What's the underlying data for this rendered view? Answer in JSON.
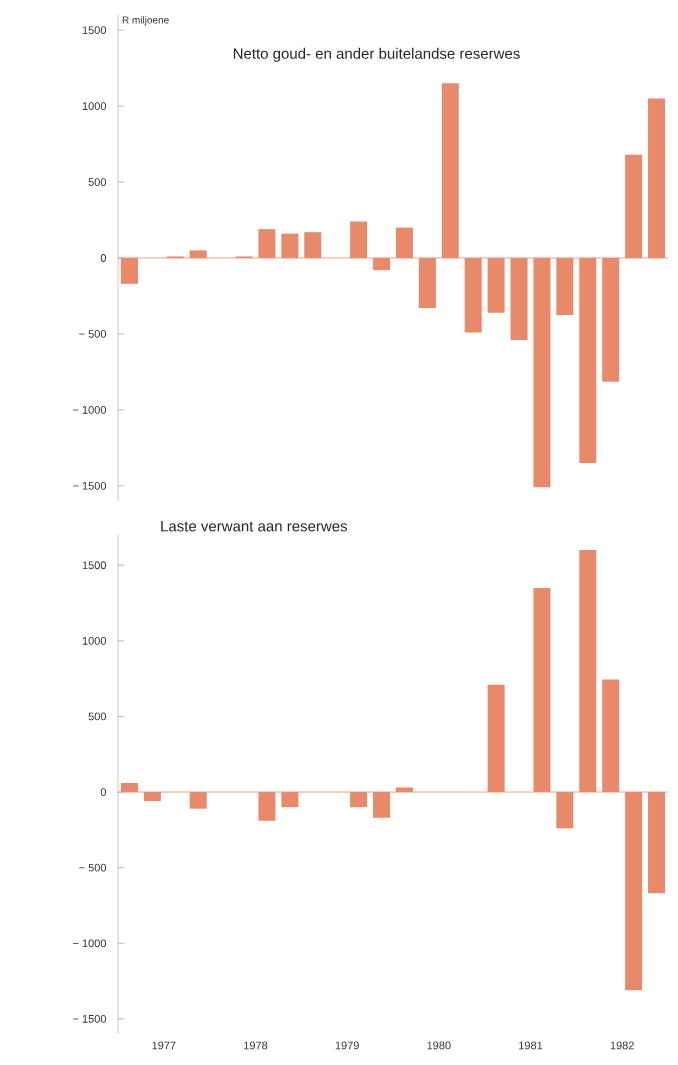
{
  "chart_data": [
    {
      "type": "bar",
      "title": "Netto goud- en ander buitelandse reserwes",
      "ylabel": "R miljoene",
      "x": [
        1977.125,
        1977.375,
        1977.625,
        1977.875,
        1978.125,
        1978.375,
        1978.625,
        1978.875,
        1979.125,
        1979.375,
        1979.625,
        1979.875,
        1980.125,
        1980.375,
        1980.625,
        1980.875,
        1981.125,
        1981.375,
        1981.625,
        1981.875,
        1982.125,
        1982.375,
        1982.625,
        1982.875
      ],
      "values": [
        -170,
        0,
        10,
        50,
        0,
        10,
        190,
        160,
        170,
        0,
        240,
        -80,
        200,
        -330,
        1150,
        -490,
        -360,
        -540,
        -1510,
        -375,
        -1350,
        -815,
        680,
        1050
      ],
      "color": "#e8896a",
      "xlim": [
        1977,
        1983
      ],
      "ylim": [
        -1600,
        1600
      ],
      "yticks": [
        {
          "value": -1500,
          "label": "− 1500"
        },
        {
          "value": -1000,
          "label": "− 1000"
        },
        {
          "value": -500,
          "label": "− 500"
        },
        0,
        500,
        1000,
        1500
      ],
      "ref_lines": [
        {
          "axis": "y",
          "value": 0,
          "color": "#e8896a"
        }
      ],
      "tick_labels": "y"
    },
    {
      "type": "bar",
      "title": "Laste verwant aan reserwes",
      "x": [
        1977.125,
        1977.375,
        1977.625,
        1977.875,
        1978.125,
        1978.375,
        1978.625,
        1978.875,
        1979.125,
        1979.375,
        1979.625,
        1979.875,
        1980.125,
        1980.375,
        1980.625,
        1980.875,
        1981.125,
        1981.375,
        1981.625,
        1981.875,
        1982.125,
        1982.375,
        1982.625,
        1982.875
      ],
      "values": [
        60,
        -60,
        0,
        -110,
        0,
        0,
        -190,
        -100,
        0,
        0,
        -100,
        -170,
        30,
        0,
        0,
        0,
        710,
        0,
        1350,
        -240,
        1600,
        745,
        -1310,
        -670
      ],
      "color": "#e8896a",
      "xlim": [
        1977,
        1983
      ],
      "xticks": [
        {
          "value": 1977.5,
          "label": "1977"
        },
        {
          "value": 1978.5,
          "label": "1978"
        },
        {
          "value": 1979.5,
          "label": "1979"
        },
        {
          "value": 1980.5,
          "label": "1980"
        },
        {
          "value": 1981.5,
          "label": "1981"
        },
        {
          "value": 1982.5,
          "label": "1982"
        }
      ],
      "ylim": [
        -1600,
        1700
      ],
      "yticks": [
        {
          "value": -1500,
          "label": "− 1500"
        },
        {
          "value": -1000,
          "label": "− 1000"
        },
        {
          "value": -500,
          "label": "− 500"
        },
        0,
        500,
        1000,
        1500
      ],
      "ref_lines": [
        {
          "axis": "y",
          "value": 0,
          "color": "#e8896a"
        }
      ]
    }
  ]
}
